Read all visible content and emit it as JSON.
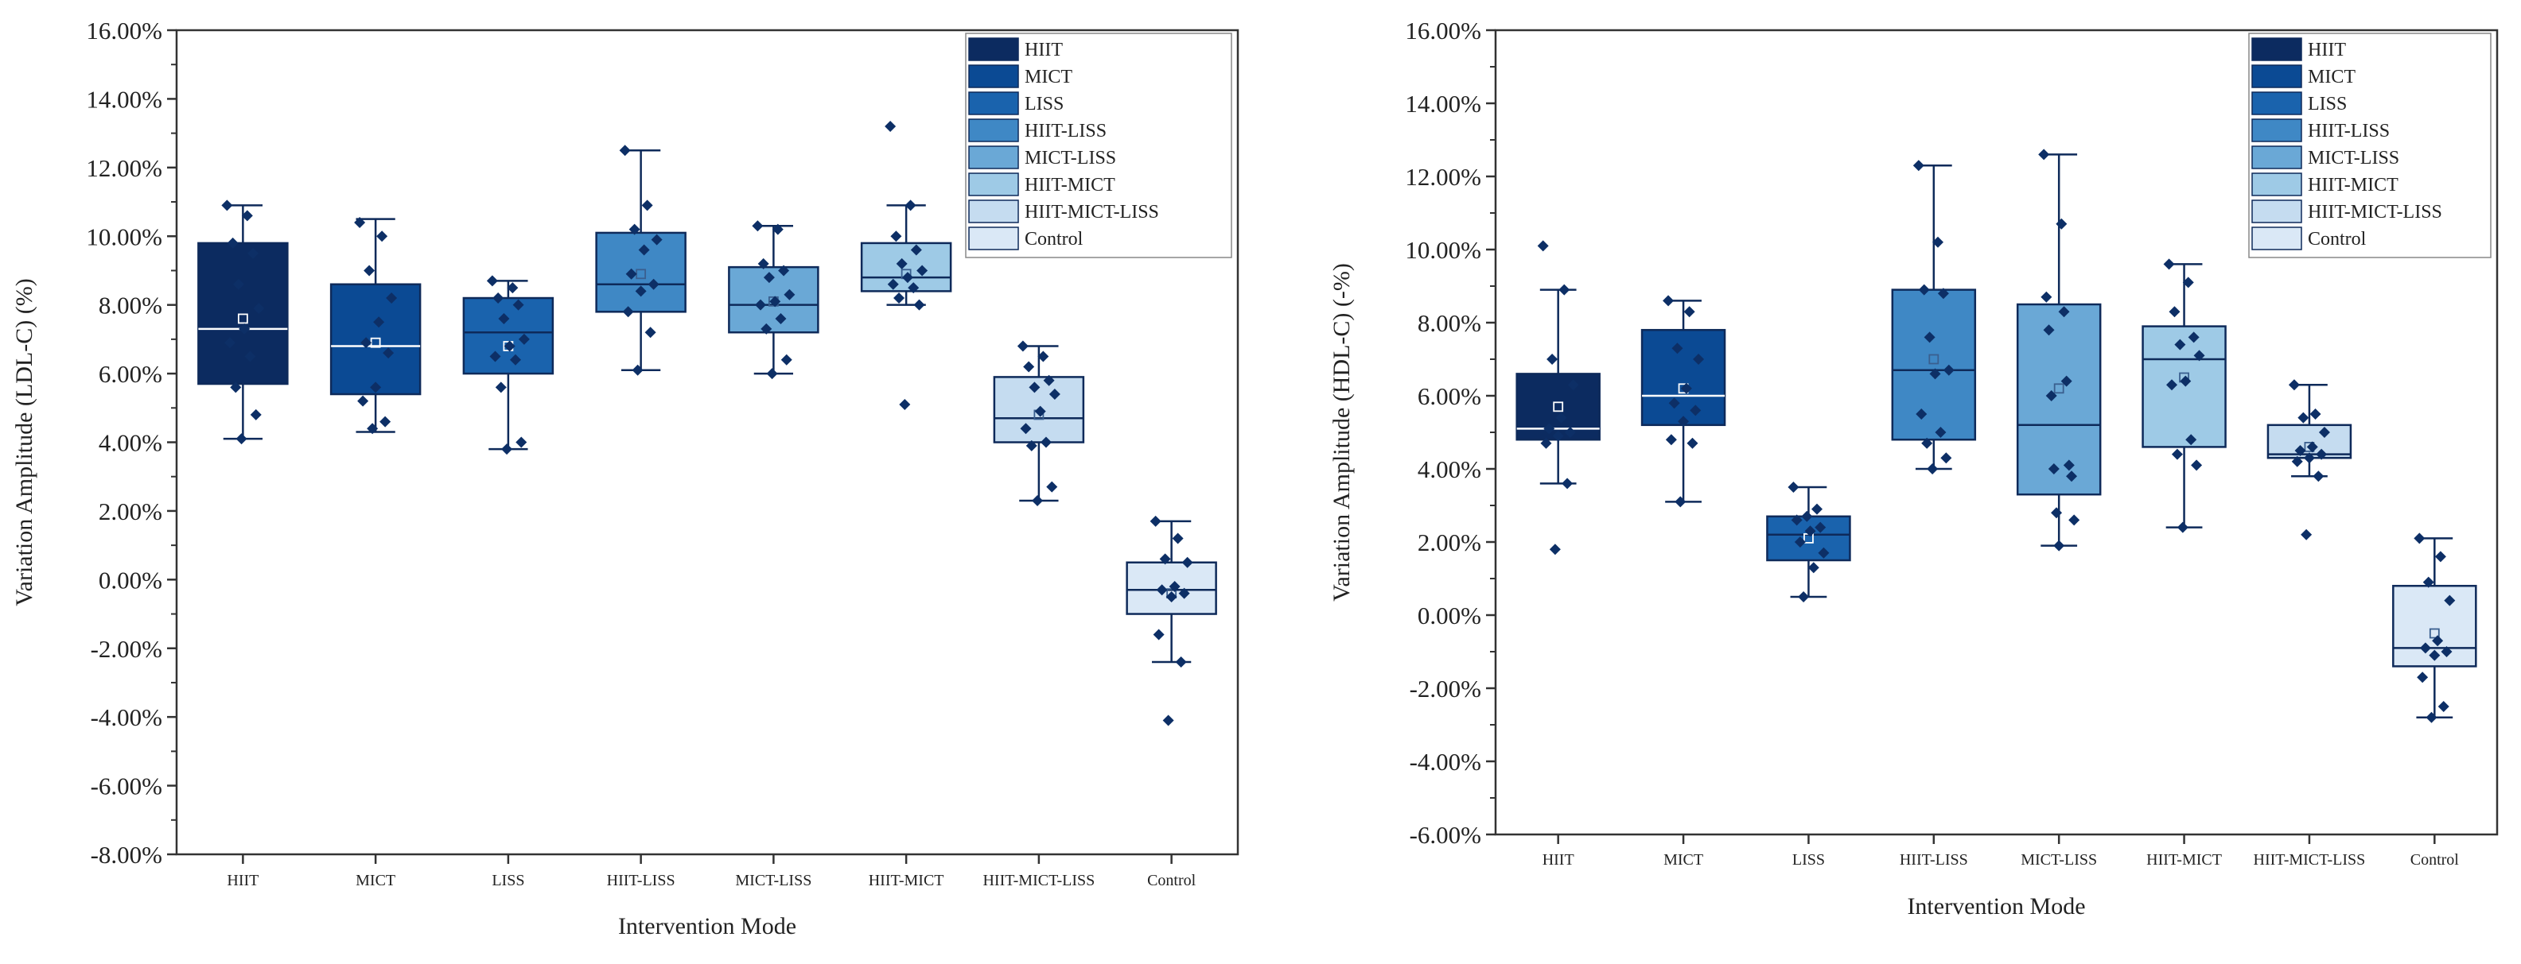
{
  "colors": {
    "groups": [
      "#0c2b60",
      "#0b4a94",
      "#1a63ad",
      "#3f88c5",
      "#6aa8d6",
      "#9ecae6",
      "#c5dcf0",
      "#dae8f6"
    ],
    "scatter_point": "#0d2f66",
    "outline": "#0e2a5a",
    "axis": "#333333"
  },
  "chart_data": [
    {
      "type": "box",
      "xlabel": "Intervention Mode",
      "ylabel": "Variation Amplitude (LDL-C) (%)",
      "ylim": [
        -8,
        16
      ],
      "yticks": [
        "-8.00%",
        "-6.00%",
        "-4.00%",
        "-2.00%",
        "0.00%",
        "2.00%",
        "4.00%",
        "6.00%",
        "8.00%",
        "10.00%",
        "12.00%",
        "14.00%",
        "16.00%"
      ],
      "categories": [
        "HIIT",
        "MICT",
        "LISS",
        "HIIT-LISS",
        "MICT-LISS",
        "HIIT-MICT",
        "HIIT-MICT-LISS",
        "Control"
      ],
      "legend": [
        "HIIT",
        "MICT",
        "LISS",
        "HIIT-LISS",
        "MICT-LISS",
        "HIIT-MICT",
        "HIIT-MICT-LISS",
        "Control"
      ],
      "boxes": [
        {
          "whisker_low": 4.1,
          "q1": 5.7,
          "median": 7.3,
          "q3": 9.8,
          "whisker_high": 10.9,
          "mean": 7.6,
          "points": [
            10.9,
            10.6,
            9.8,
            9.5,
            8.6,
            7.9,
            7.3,
            6.9,
            6.5,
            5.6,
            4.8,
            4.1
          ]
        },
        {
          "whisker_low": 4.3,
          "q1": 5.4,
          "median": 6.8,
          "q3": 8.6,
          "whisker_high": 10.5,
          "mean": 6.9,
          "points": [
            10.4,
            10.0,
            9.0,
            8.2,
            7.5,
            6.9,
            6.6,
            5.6,
            5.2,
            4.6,
            4.4
          ]
        },
        {
          "whisker_low": 3.8,
          "q1": 6.0,
          "median": 7.2,
          "q3": 8.2,
          "whisker_high": 8.7,
          "mean": 6.8,
          "points": [
            8.7,
            8.5,
            8.2,
            8.0,
            7.6,
            7.0,
            6.8,
            6.5,
            6.4,
            5.6,
            4.0,
            3.8
          ]
        },
        {
          "whisker_low": 6.1,
          "q1": 7.8,
          "median": 8.6,
          "q3": 10.1,
          "whisker_high": 12.5,
          "mean": 8.9,
          "points": [
            12.5,
            10.9,
            10.2,
            9.9,
            9.6,
            8.9,
            8.6,
            8.4,
            7.8,
            7.2,
            6.1
          ]
        },
        {
          "whisker_low": 6.0,
          "q1": 7.2,
          "median": 8.0,
          "q3": 9.1,
          "whisker_high": 10.3,
          "mean": 8.1,
          "points": [
            10.3,
            10.2,
            9.2,
            9.0,
            8.8,
            8.3,
            8.1,
            8.0,
            7.6,
            7.3,
            6.4,
            6.0
          ]
        },
        {
          "whisker_low": 8.0,
          "q1": 8.4,
          "median": 8.8,
          "q3": 9.8,
          "whisker_high": 10.9,
          "mean": 8.9,
          "points": [
            13.2,
            10.9,
            10.0,
            9.6,
            9.2,
            9.0,
            8.8,
            8.6,
            8.5,
            8.2,
            8.0,
            5.1
          ]
        },
        {
          "whisker_low": 2.3,
          "q1": 4.0,
          "median": 4.7,
          "q3": 5.9,
          "whisker_high": 6.8,
          "mean": 4.8,
          "points": [
            6.8,
            6.5,
            6.2,
            5.8,
            5.6,
            5.4,
            4.9,
            4.4,
            4.0,
            3.9,
            2.7,
            2.3
          ]
        },
        {
          "whisker_low": -2.4,
          "q1": -1.0,
          "median": -0.3,
          "q3": 0.5,
          "whisker_high": 1.7,
          "mean": -0.4,
          "points": [
            1.7,
            1.2,
            0.6,
            0.5,
            -0.2,
            -0.3,
            -0.4,
            -0.5,
            -1.6,
            -2.4,
            -4.1
          ]
        }
      ]
    },
    {
      "type": "box",
      "xlabel": "Intervention Mode",
      "ylabel": "Variation Amplitude (HDL-C) (-%)",
      "ylim": [
        -6,
        16
      ],
      "yticks": [
        "-6.00%",
        "-4.00%",
        "-2.00%",
        "0.00%",
        "2.00%",
        "4.00%",
        "6.00%",
        "8.00%",
        "10.00%",
        "12.00%",
        "14.00%",
        "16.00%"
      ],
      "categories": [
        "HIIT",
        "MICT",
        "LISS",
        "HIIT-LISS",
        "MICT-LISS",
        "HIIT-MICT",
        "HIIT-MICT-LISS",
        "Control"
      ],
      "legend": [
        "HIIT",
        "MICT",
        "LISS",
        "HIIT-LISS",
        "MICT-LISS",
        "HIIT-MICT",
        "HIIT-MICT-LISS",
        "Control"
      ],
      "boxes": [
        {
          "whisker_low": 3.6,
          "q1": 4.8,
          "median": 5.1,
          "q3": 6.6,
          "whisker_high": 8.9,
          "mean": 5.7,
          "points": [
            10.1,
            8.9,
            7.0,
            6.3,
            5.4,
            5.1,
            5.0,
            4.9,
            4.7,
            3.6,
            1.8
          ]
        },
        {
          "whisker_low": 3.1,
          "q1": 5.2,
          "median": 6.0,
          "q3": 7.8,
          "whisker_high": 8.6,
          "mean": 6.2,
          "points": [
            8.6,
            8.3,
            7.3,
            7.0,
            6.2,
            5.8,
            5.6,
            5.3,
            4.8,
            4.7,
            3.1
          ]
        },
        {
          "whisker_low": 0.5,
          "q1": 1.5,
          "median": 2.2,
          "q3": 2.7,
          "whisker_high": 3.5,
          "mean": 2.1,
          "points": [
            3.5,
            2.9,
            2.7,
            2.6,
            2.4,
            2.3,
            2.0,
            1.7,
            1.3,
            0.5
          ]
        },
        {
          "whisker_low": 4.0,
          "q1": 4.8,
          "median": 6.7,
          "q3": 8.9,
          "whisker_high": 12.3,
          "mean": 7.0,
          "points": [
            12.3,
            10.2,
            8.9,
            8.8,
            7.6,
            6.7,
            6.6,
            5.5,
            5.0,
            4.7,
            4.3,
            4.0
          ]
        },
        {
          "whisker_low": 1.9,
          "q1": 3.3,
          "median": 5.2,
          "q3": 8.5,
          "whisker_high": 12.6,
          "mean": 6.2,
          "points": [
            12.6,
            10.7,
            8.7,
            8.3,
            7.8,
            6.4,
            6.0,
            4.1,
            4.0,
            3.8,
            2.8,
            2.6,
            1.9
          ]
        },
        {
          "whisker_low": 2.4,
          "q1": 4.6,
          "median": 7.0,
          "q3": 7.9,
          "whisker_high": 9.6,
          "mean": 6.5,
          "points": [
            9.6,
            9.1,
            8.3,
            7.6,
            7.4,
            7.1,
            6.4,
            6.3,
            4.8,
            4.4,
            4.1,
            2.4
          ]
        },
        {
          "whisker_low": 3.8,
          "q1": 4.3,
          "median": 4.4,
          "q3": 5.2,
          "whisker_high": 6.3,
          "mean": 4.6,
          "points": [
            6.3,
            5.5,
            5.4,
            5.0,
            4.6,
            4.5,
            4.4,
            4.3,
            4.2,
            3.8,
            2.2
          ]
        },
        {
          "whisker_low": -2.8,
          "q1": -1.4,
          "median": -0.9,
          "q3": 0.8,
          "whisker_high": 2.1,
          "mean": -0.5,
          "points": [
            2.1,
            1.6,
            0.9,
            0.4,
            -0.7,
            -0.9,
            -1.0,
            -1.1,
            -1.7,
            -2.5,
            -2.8
          ]
        }
      ]
    }
  ]
}
